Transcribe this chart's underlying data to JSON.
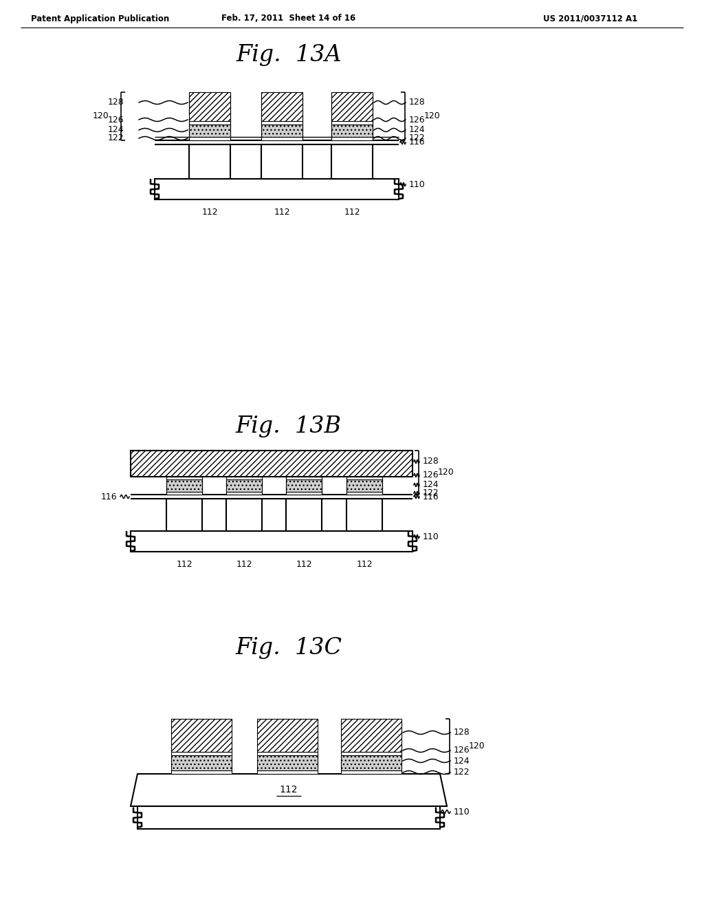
{
  "page_header_left": "Patent Application Publication",
  "page_header_center": "Feb. 17, 2011  Sheet 14 of 16",
  "page_header_right": "US 2011/0037112 A1",
  "fig_titles": [
    "Fig.  13A",
    "Fig.  13B",
    "Fig.  13C"
  ],
  "background_color": "#ffffff"
}
